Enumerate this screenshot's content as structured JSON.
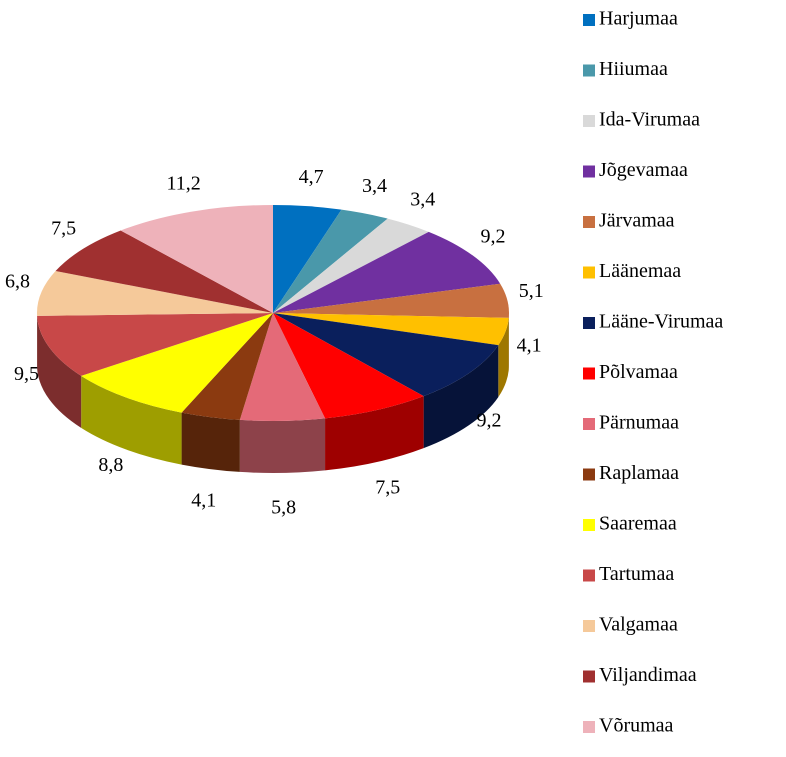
{
  "chart_data": {
    "type": "pie",
    "categories": [
      "Harjumaa",
      "Hiiumaa",
      "Ida-Virumaa",
      "Jõgevamaa",
      "Järvamaa",
      "Läänemaa",
      "Lääne-Virumaa",
      "Põlvamaa",
      "Pärnumaa",
      "Raplamaa",
      "Saaremaa",
      "Tartumaa",
      "Valgamaa",
      "Viljandimaa",
      "Võrumaa"
    ],
    "values": [
      4.7,
      3.4,
      3.4,
      9.2,
      5.1,
      4.1,
      9.2,
      7.5,
      5.8,
      4.1,
      8.8,
      9.5,
      6.8,
      7.5,
      11.2
    ],
    "value_labels": [
      "4,7",
      "3,4",
      "3,4",
      "9,2",
      "5,1",
      "4,1",
      "9,2",
      "7,5",
      "5,8",
      "4,1",
      "8,8",
      "9,5",
      "6,8",
      "7,5",
      "11,2"
    ],
    "colors": [
      "#0070c0",
      "#4a98aa",
      "#d9d9d9",
      "#7030a0",
      "#c87040",
      "#ffc000",
      "#0a1f5c",
      "#ff0000",
      "#e46a78",
      "#8b3a10",
      "#ffff00",
      "#c84848",
      "#f5c99a",
      "#a03030",
      "#eeb2ba"
    ],
    "legend": "right"
  }
}
